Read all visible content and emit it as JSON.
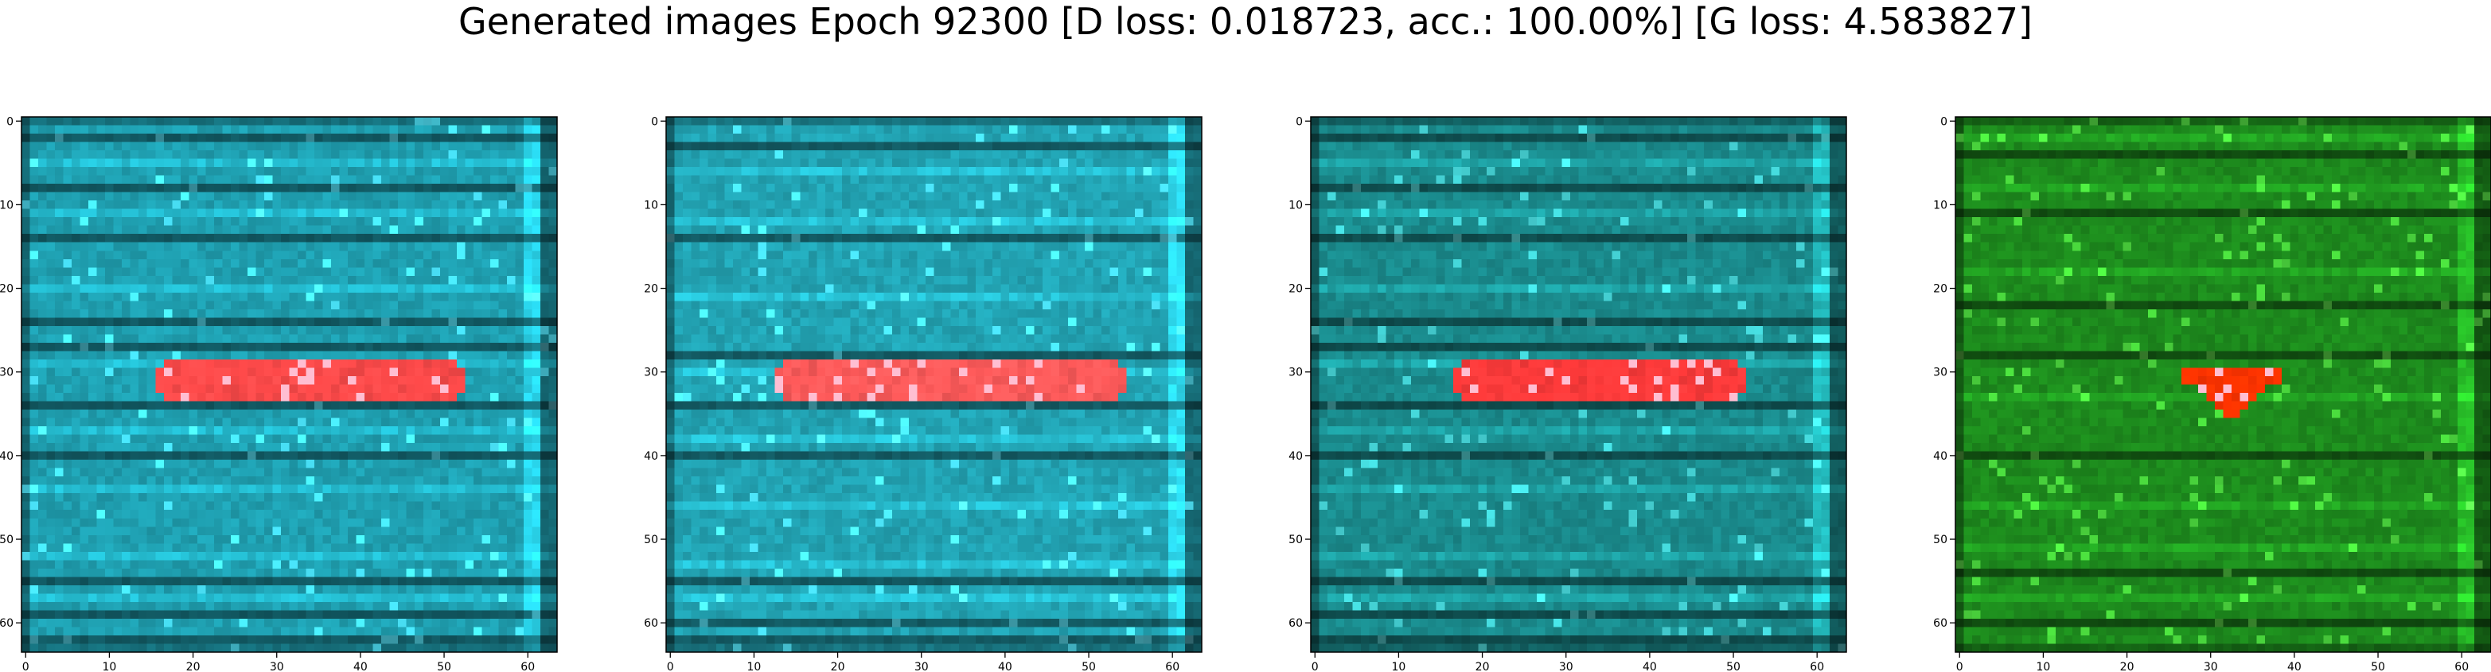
{
  "figure": {
    "title": "Generated images Epoch 92300 [D loss: 0.018723, acc.: 100.00%] [G loss: 4.583827]"
  },
  "chart_data": [
    {
      "type": "heatmap",
      "description_kind": "generated image 64x64 RGB",
      "xlim": [
        -0.5,
        63.5
      ],
      "ylim": [
        63.5,
        -0.5
      ],
      "xticks": [
        0,
        10,
        20,
        30,
        40,
        50,
        60
      ],
      "yticks": [
        0,
        10,
        20,
        30,
        40,
        50,
        60
      ],
      "base_color": "#1f9fb0",
      "feature": {
        "shape": "horizontal-bar",
        "color": "#ff4a4a",
        "x_range": [
          16,
          52
        ],
        "y_center": 31
      },
      "dark_rows": [
        2,
        8,
        14,
        24,
        27,
        34,
        40,
        55,
        59,
        62
      ],
      "light_rows": [
        5,
        11,
        20,
        29,
        37,
        44,
        52,
        57
      ]
    },
    {
      "type": "heatmap",
      "description_kind": "generated image 64x64 RGB",
      "xlim": [
        -0.5,
        63.5
      ],
      "ylim": [
        63.5,
        -0.5
      ],
      "xticks": [
        0,
        10,
        20,
        30,
        40,
        50,
        60
      ],
      "yticks": [
        0,
        10,
        20,
        30,
        40,
        50,
        60
      ],
      "base_color": "#22a3b3",
      "feature": {
        "shape": "horizontal-bar",
        "color": "#ff5a5a",
        "x_range": [
          13,
          54
        ],
        "y_center": 31
      },
      "dark_rows": [
        3,
        14,
        28,
        34,
        40,
        55,
        60,
        62
      ],
      "light_rows": [
        6,
        12,
        21,
        30,
        38,
        46,
        53,
        57
      ]
    },
    {
      "type": "heatmap",
      "description_kind": "generated image 64x64 RGB",
      "xlim": [
        -0.5,
        63.5
      ],
      "ylim": [
        63.5,
        -0.5
      ],
      "xticks": [
        0,
        10,
        20,
        30,
        40,
        50,
        60
      ],
      "yticks": [
        0,
        10,
        20,
        30,
        40,
        50,
        60
      ],
      "base_color": "#1a8a8c",
      "feature": {
        "shape": "horizontal-bar",
        "color": "#ff3a3a",
        "x_range": [
          17,
          51
        ],
        "y_center": 31
      },
      "dark_rows": [
        2,
        8,
        14,
        24,
        27,
        34,
        40,
        55,
        59,
        62
      ],
      "light_rows": [
        5,
        11,
        20,
        29,
        37,
        44,
        52,
        57
      ]
    },
    {
      "type": "heatmap",
      "description_kind": "generated image 64x64 RGB",
      "xlim": [
        -0.5,
        63.5
      ],
      "ylim": [
        63.5,
        -0.5
      ],
      "xticks": [
        0,
        10,
        20,
        30,
        40,
        50,
        60
      ],
      "yticks": [
        0,
        10,
        20,
        30,
        40,
        50,
        60
      ],
      "base_color": "#1d8a1d",
      "feature": {
        "shape": "blob",
        "color": "#ff3300",
        "x_range": [
          27,
          38
        ],
        "y_center": 31
      },
      "dark_rows": [
        4,
        11,
        22,
        28,
        40,
        54,
        60
      ],
      "light_rows": [
        2,
        8,
        18,
        33,
        46,
        51,
        57
      ]
    }
  ],
  "colors": {
    "axis": "#000000",
    "background": "#ffffff"
  }
}
